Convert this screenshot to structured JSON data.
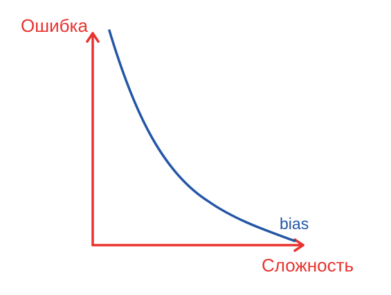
{
  "diagram": {
    "y_axis_label": "Ошибка",
    "x_axis_label": "Сложность",
    "curve_label": "bias"
  },
  "colors": {
    "axis": "#e8332e",
    "curve": "#2456a6",
    "background": "#ffffff"
  }
}
